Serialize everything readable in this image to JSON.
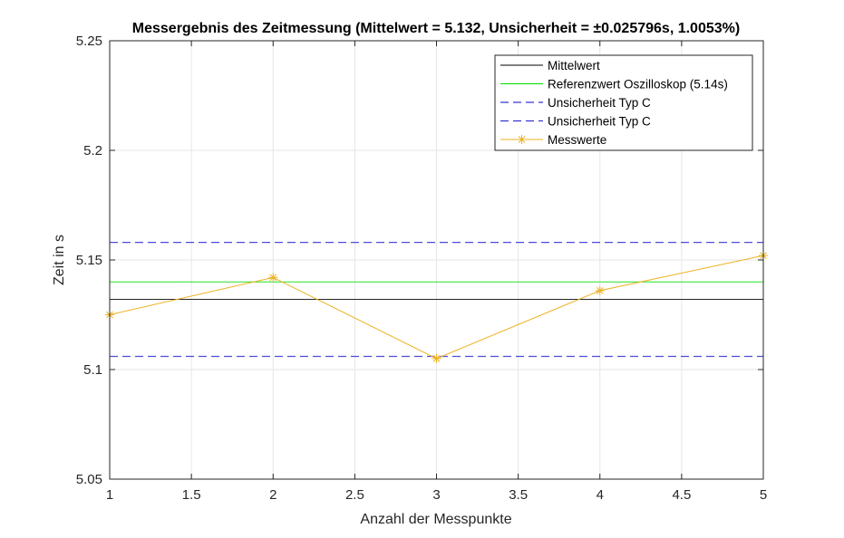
{
  "chart_data": {
    "type": "line",
    "title": "Messergebnis des Zeitmessung (Mittelwert = 5.132, Unsicherheit = ±0.025796s, 1.0053%)",
    "xlabel": "Anzahl der Messpunkte",
    "ylabel": "Zeit in s",
    "xlim": [
      1,
      5
    ],
    "ylim": [
      5.05,
      5.25
    ],
    "xticks": [
      1,
      1.5,
      2,
      2.5,
      3,
      3.5,
      4,
      4.5,
      5
    ],
    "xtick_labels": [
      "1",
      "1.5",
      "2",
      "2.5",
      "3",
      "3.5",
      "4",
      "4.5",
      "5"
    ],
    "yticks": [
      5.05,
      5.1,
      5.15,
      5.2,
      5.25
    ],
    "ytick_labels": [
      "5.05",
      "5.1",
      "5.15",
      "5.2",
      "5.25"
    ],
    "grid": true,
    "legend_position": "top-right",
    "series": [
      {
        "name": "Mittelwert",
        "kind": "hline",
        "y": 5.132,
        "color": "#000000",
        "style": "solid"
      },
      {
        "name": "Referenzwert Oszilloskop (5.14s)",
        "kind": "hline",
        "y": 5.14,
        "color": "#00dd00",
        "style": "solid"
      },
      {
        "name": "Unsicherheit Typ C",
        "kind": "hline",
        "y": 5.158,
        "color": "#0000cc",
        "style": "dashed"
      },
      {
        "name": "Unsicherheit Typ C",
        "kind": "hline",
        "y": 5.106,
        "color": "#0000cc",
        "style": "dashed"
      },
      {
        "name": "Messwerte",
        "kind": "line-marker",
        "x": [
          1,
          2,
          3,
          4,
          5
        ],
        "y": [
          5.125,
          5.142,
          5.105,
          5.136,
          5.152
        ],
        "color": "#edb120",
        "marker": "asterisk"
      }
    ]
  }
}
